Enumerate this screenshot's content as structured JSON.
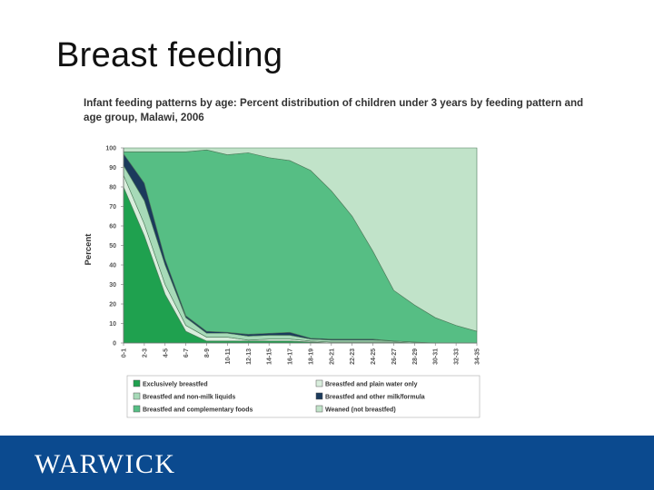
{
  "slide": {
    "title": "Breast feeding",
    "footer_logo": "WARWICK"
  },
  "chart_data": {
    "type": "area",
    "title": "Infant feeding patterns by age: Percent distribution of children under 3 years by feeding pattern and age group, Malawi, 2006",
    "xlabel": "",
    "ylabel": "Percent",
    "ylim": [
      0,
      100
    ],
    "yticks": [
      0,
      10,
      20,
      30,
      40,
      50,
      60,
      70,
      80,
      90,
      100
    ],
    "stacked": true,
    "legend_position": "bottom",
    "grid": false,
    "categories": [
      "0-1",
      "2-3",
      "4-5",
      "6-7",
      "8-9",
      "10-11",
      "12-13",
      "14-15",
      "16-17",
      "18-19",
      "20-21",
      "22-23",
      "24-25",
      "26-27",
      "28-29",
      "30-31",
      "32-33",
      "34-35"
    ],
    "series": [
      {
        "name": "Exclusively breastfed",
        "color": "#1fa14f",
        "values": [
          80,
          55,
          25,
          6,
          1,
          1,
          1,
          1,
          1,
          0.5,
          0,
          0,
          0,
          0,
          0,
          0,
          0,
          0
        ]
      },
      {
        "name": "Breastfed and plain water only",
        "color": "#d9eedd",
        "values": [
          6,
          6,
          5,
          3,
          2,
          2,
          0.5,
          1,
          1,
          0.5,
          0.5,
          0.5,
          0.5,
          0.5,
          0,
          0,
          0,
          0
        ]
      },
      {
        "name": "Breastfed and non-milk liquids",
        "color": "#a7dab8",
        "values": [
          5,
          12,
          10,
          4,
          2,
          2,
          2,
          2,
          2,
          1,
          1,
          1,
          1,
          0.5,
          0.5,
          0,
          0,
          0
        ]
      },
      {
        "name": "Breastfed and other milk/formula",
        "color": "#1b3a5c",
        "values": [
          6,
          9,
          3,
          1,
          1,
          0.5,
          1,
          1,
          1.5,
          0.5,
          0.5,
          0.5,
          0.5,
          0,
          0,
          0,
          0,
          0
        ]
      },
      {
        "name": "Breastfed and complementary foods",
        "color": "#56be84",
        "values": [
          1,
          16,
          55,
          84,
          93,
          91,
          93,
          90,
          88,
          86,
          76,
          63,
          45,
          26,
          19,
          13,
          9,
          6
        ]
      },
      {
        "name": "Weaned (not breastfed)",
        "color": "#c1e3c9",
        "values": [
          2,
          2,
          2,
          2,
          1,
          3.5,
          2.5,
          5,
          6.5,
          11.5,
          22,
          35,
          53,
          73,
          80.5,
          87,
          91,
          94
        ]
      }
    ],
    "legend": [
      {
        "name": "Exclusively breastfed",
        "color": "#1fa14f"
      },
      {
        "name": "Breastfed and plain water only",
        "color": "#d9eedd"
      },
      {
        "name": "Breastfed and non-milk liquids",
        "color": "#a7dab8"
      },
      {
        "name": "Breastfed and other milk/formula",
        "color": "#1b3a5c"
      },
      {
        "name": "Breastfed and complementary foods",
        "color": "#56be84"
      },
      {
        "name": "Weaned (not breastfed)",
        "color": "#c1e3c9"
      }
    ]
  }
}
